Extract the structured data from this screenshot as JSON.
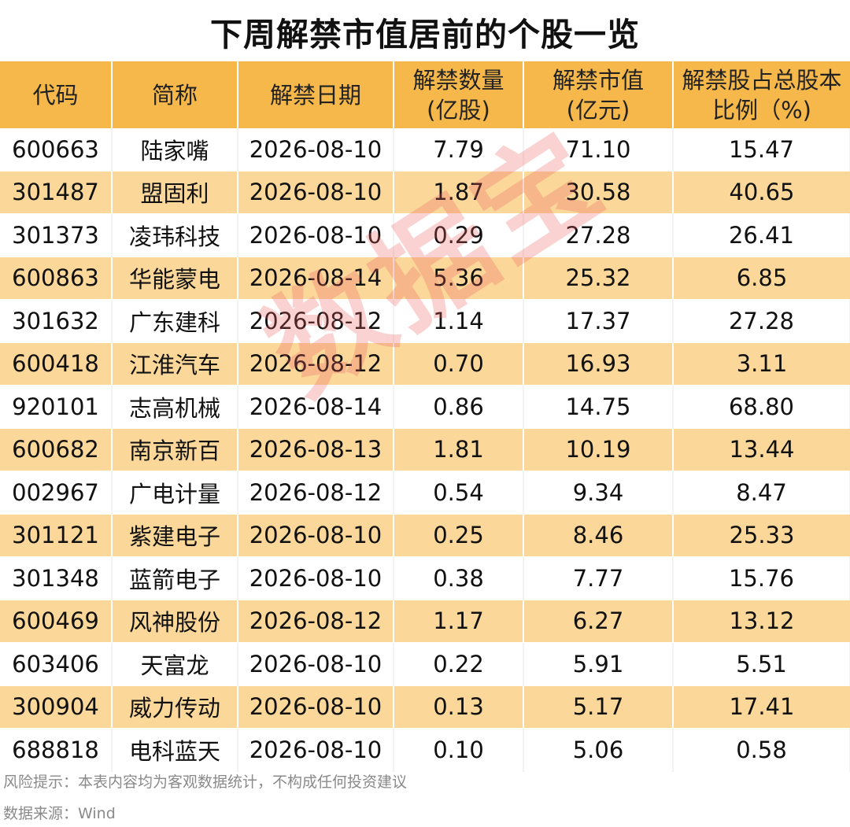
{
  "title": "下周解禁市值居前的个股一览",
  "table": {
    "headers": [
      "代码",
      "简称",
      "解禁日期",
      "解禁数量\n(亿股)",
      "解禁市值\n(亿元)",
      "解禁股占总股本\n比例（%)"
    ],
    "rows": [
      [
        "600663",
        "陆家嘴",
        "2026-08-10",
        "7.79",
        "71.10",
        "15.47"
      ],
      [
        "301487",
        "盟固利",
        "2026-08-10",
        "1.87",
        "30.58",
        "40.65"
      ],
      [
        "301373",
        "凌玮科技",
        "2026-08-10",
        "0.29",
        "27.28",
        "26.41"
      ],
      [
        "600863",
        "华能蒙电",
        "2026-08-14",
        "5.36",
        "25.32",
        "6.85"
      ],
      [
        "301632",
        "广东建科",
        "2026-08-12",
        "1.14",
        "17.37",
        "27.28"
      ],
      [
        "600418",
        "江淮汽车",
        "2026-08-12",
        "0.70",
        "16.93",
        "3.11"
      ],
      [
        "920101",
        "志高机械",
        "2026-08-14",
        "0.86",
        "14.75",
        "68.80"
      ],
      [
        "600682",
        "南京新百",
        "2026-08-13",
        "1.81",
        "10.19",
        "13.44"
      ],
      [
        "002967",
        "广电计量",
        "2026-08-12",
        "0.54",
        "9.34",
        "8.47"
      ],
      [
        "301121",
        "紫建电子",
        "2026-08-10",
        "0.25",
        "8.46",
        "25.33"
      ],
      [
        "301348",
        "蓝箭电子",
        "2026-08-10",
        "0.38",
        "7.77",
        "15.76"
      ],
      [
        "600469",
        "风神股份",
        "2026-08-12",
        "1.17",
        "6.27",
        "13.12"
      ],
      [
        "603406",
        "天富龙",
        "2026-08-10",
        "0.22",
        "5.91",
        "5.51"
      ],
      [
        "300904",
        "威力传动",
        "2026-08-10",
        "0.13",
        "5.17",
        "17.41"
      ],
      [
        "688818",
        "电科蓝天",
        "2026-08-10",
        "0.10",
        "5.06",
        "0.58"
      ]
    ]
  },
  "watermark": "数据宝",
  "footer": {
    "risk_note": "风险提示：本表内容均为客观数据统计，不构成任何投资建议",
    "source": "数据来源：Wind"
  },
  "colors": {
    "header_bg": "#f6b84a",
    "stripe_bg": "#fbd89a",
    "watermark": "#ec5c5c"
  }
}
